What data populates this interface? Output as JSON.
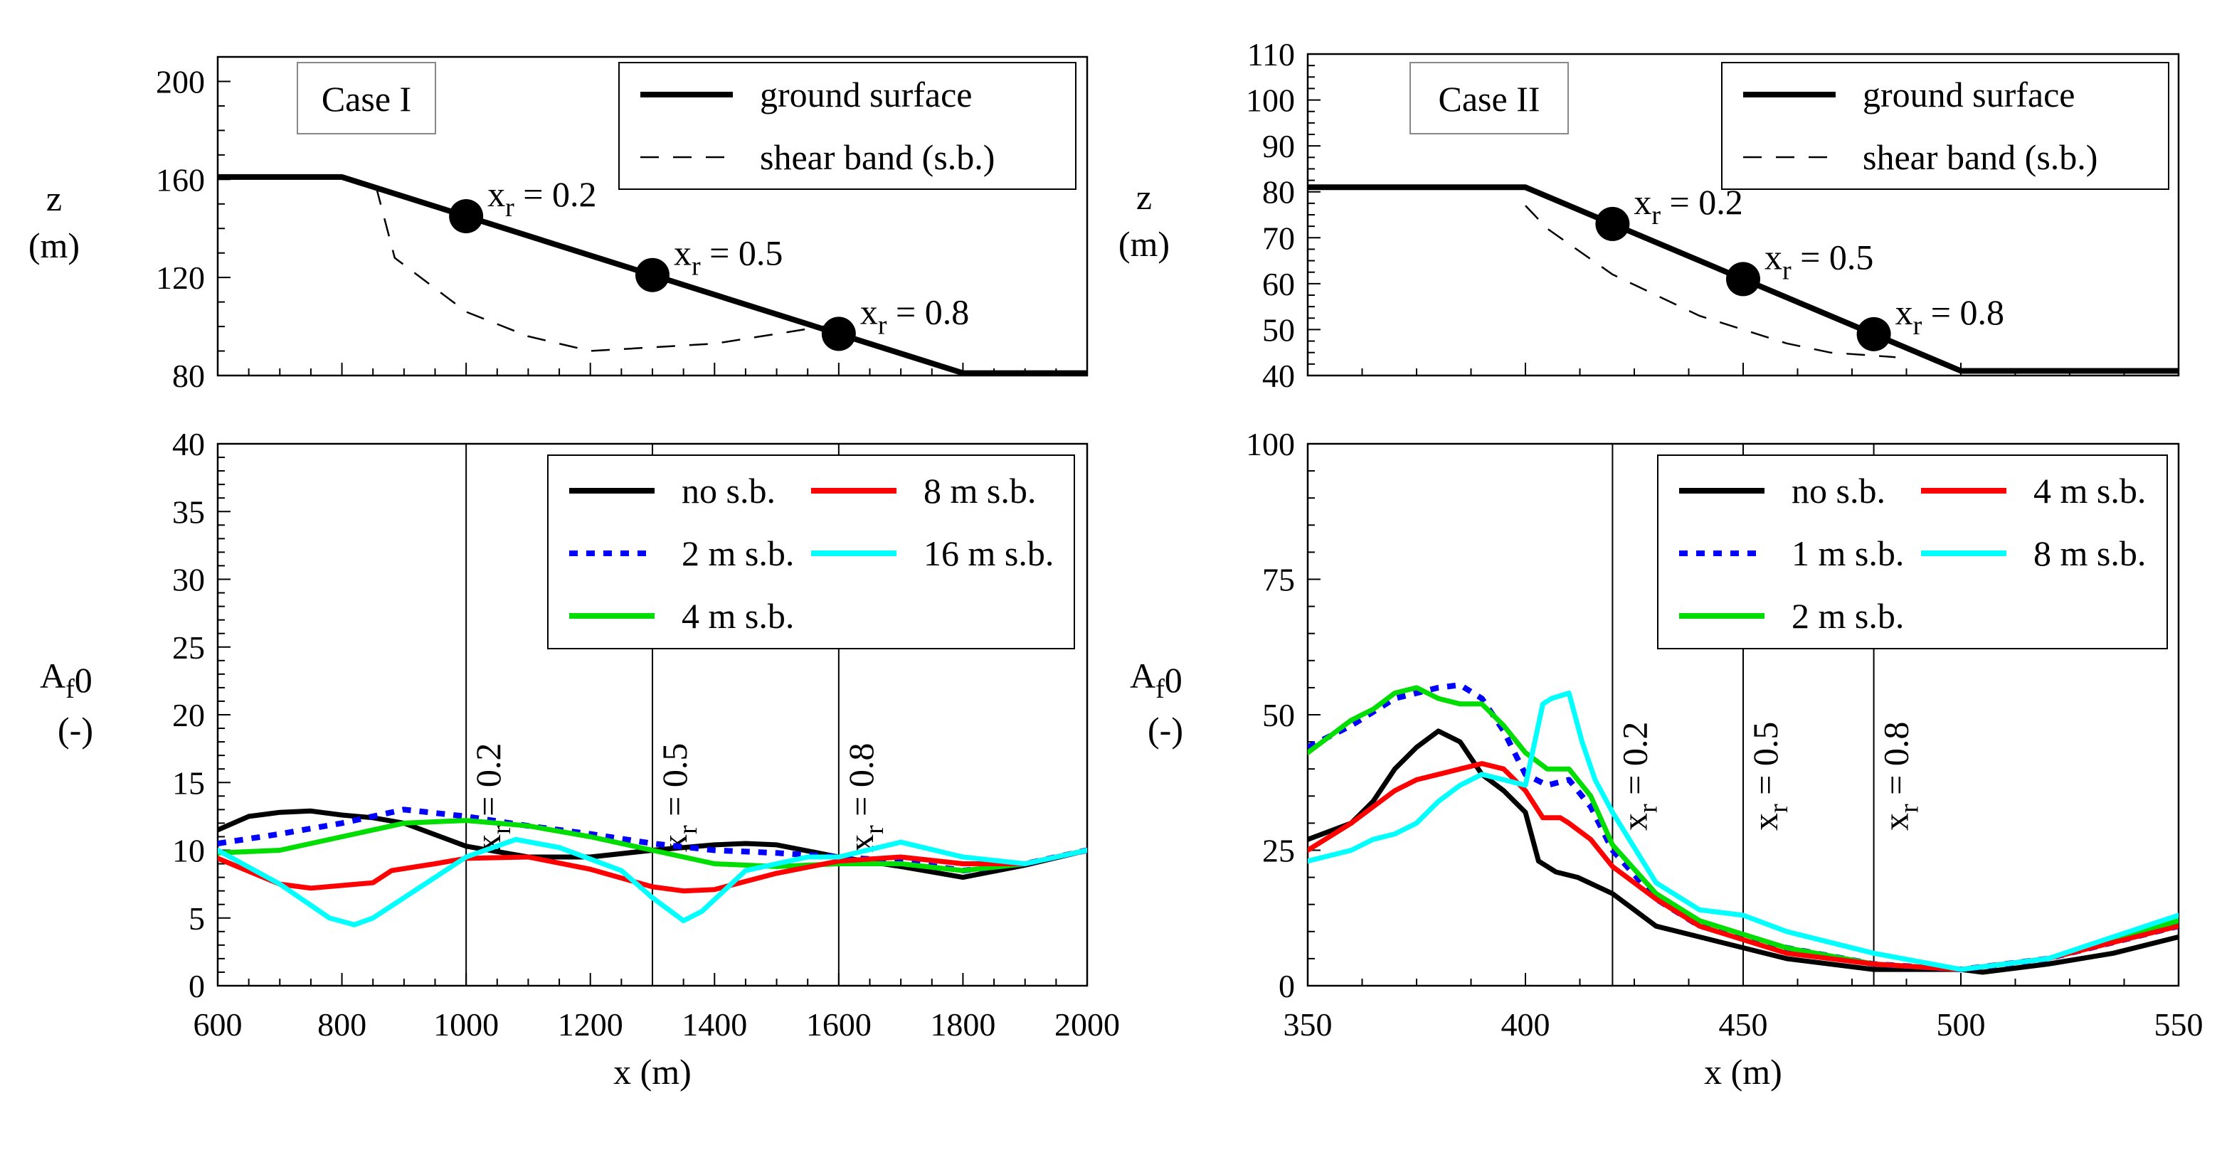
{
  "colors": {
    "black": "#000000",
    "red": "#ff0000",
    "blue": "#0000ff",
    "cyan": "#00ffff",
    "green": "#00dd00"
  },
  "chart_data": [
    {
      "id": "case1-profile",
      "type": "line",
      "title": "Case I",
      "xlabel": "",
      "ylabel": "z",
      "ylabel_unit": "(m)",
      "xlim": [
        600,
        2000
      ],
      "ylim": [
        80,
        210
      ],
      "xticks": [
        600,
        800,
        1000,
        1200,
        1400,
        1600,
        1800,
        2000
      ],
      "yticks": [
        80,
        120,
        160,
        200
      ],
      "legend": [
        {
          "label": "ground surface",
          "style": "solid-thick"
        },
        {
          "label": "shear band (s.b.)",
          "style": "dashed"
        }
      ],
      "series": [
        {
          "name": "ground surface",
          "style": "solid-thick",
          "color": "#000000",
          "x": [
            600,
            800,
            1800,
            2000
          ],
          "y": [
            161,
            161,
            81,
            81
          ]
        },
        {
          "name": "shear band (s.b.)",
          "style": "dashed",
          "color": "#000000",
          "x": [
            855,
            885,
            1000,
            1100,
            1200,
            1400,
            1600
          ],
          "y": [
            157,
            128,
            106,
            96,
            90,
            93,
            101
          ]
        }
      ],
      "markers": [
        {
          "label": "x",
          "sub": "r",
          "value": " = 0.2",
          "x": 1000,
          "y": 145
        },
        {
          "label": "x",
          "sub": "r",
          "value": " = 0.5",
          "x": 1300,
          "y": 121
        },
        {
          "label": "x",
          "sub": "r",
          "value": " = 0.8",
          "x": 1600,
          "y": 97
        }
      ]
    },
    {
      "id": "case1-af0",
      "type": "line",
      "xlabel": "x (m)",
      "ylabel": "A",
      "ylabel_sub": "f",
      "ylabel_subsub": "0",
      "ylabel_unit": "(-)",
      "xlim": [
        600,
        2000
      ],
      "ylim": [
        0,
        40
      ],
      "xticks": [
        600,
        800,
        1000,
        1200,
        1400,
        1600,
        1800,
        2000
      ],
      "yticks": [
        0,
        5,
        10,
        15,
        20,
        25,
        30,
        35,
        40
      ],
      "vlines": [
        {
          "x": 1000,
          "label": "x",
          "sub": "r",
          "value": " = 0.2"
        },
        {
          "x": 1300,
          "label": "x",
          "sub": "r",
          "value": " = 0.5"
        },
        {
          "x": 1600,
          "label": "x",
          "sub": "r",
          "value": " = 0.8"
        }
      ],
      "legend": [
        {
          "label": "no s.b.",
          "series": 0
        },
        {
          "label": "8 m s.b.",
          "series": 3
        },
        {
          "label": "2 m s.b.",
          "series": 1
        },
        {
          "label": "16 m s.b.",
          "series": 4
        },
        {
          "label": "4 m s.b.",
          "series": 2
        }
      ],
      "series": [
        {
          "name": "no s.b.",
          "color": "#000000",
          "style": "solid",
          "x": [
            600,
            650,
            700,
            750,
            800,
            850,
            900,
            1000,
            1100,
            1200,
            1300,
            1400,
            1450,
            1500,
            1600,
            1700,
            1800,
            1900,
            2000
          ],
          "y": [
            11.5,
            12.5,
            12.8,
            12.9,
            12.6,
            12.4,
            12.0,
            10.3,
            9.5,
            9.5,
            10.0,
            10.4,
            10.5,
            10.4,
            9.5,
            8.8,
            8.0,
            8.9,
            10.0
          ]
        },
        {
          "name": "2 m s.b.",
          "color": "#0000ff",
          "style": "dotted",
          "x": [
            600,
            700,
            800,
            900,
            1000,
            1100,
            1200,
            1300,
            1400,
            1500,
            1600,
            1700,
            1800,
            1900,
            2000
          ],
          "y": [
            10.5,
            11.2,
            12.0,
            13.0,
            12.5,
            11.8,
            11.2,
            10.5,
            10.0,
            9.8,
            9.5,
            9.2,
            8.5,
            9.0,
            10.0
          ]
        },
        {
          "name": "4 m s.b.",
          "color": "#00dd00",
          "style": "solid",
          "x": [
            600,
            700,
            800,
            900,
            1000,
            1100,
            1200,
            1300,
            1400,
            1500,
            1600,
            1700,
            1800,
            1900,
            2000
          ],
          "y": [
            9.8,
            10.0,
            11.0,
            12.0,
            12.2,
            11.8,
            11.0,
            10.0,
            9.0,
            8.8,
            9.0,
            9.0,
            8.5,
            9.0,
            10.0
          ]
        },
        {
          "name": "8 m s.b.",
          "color": "#ff0000",
          "style": "solid",
          "x": [
            600,
            700,
            750,
            800,
            850,
            880,
            950,
            1000,
            1100,
            1200,
            1300,
            1350,
            1400,
            1500,
            1600,
            1700,
            1800,
            1900,
            2000
          ],
          "y": [
            9.4,
            7.5,
            7.2,
            7.4,
            7.6,
            8.5,
            9.0,
            9.4,
            9.5,
            8.6,
            7.3,
            7.0,
            7.1,
            8.3,
            9.2,
            9.5,
            9.0,
            9.0,
            10.0
          ]
        },
        {
          "name": "16 m s.b.",
          "color": "#00ffff",
          "style": "solid",
          "x": [
            600,
            700,
            780,
            820,
            850,
            900,
            1000,
            1080,
            1150,
            1250,
            1300,
            1350,
            1380,
            1450,
            1550,
            1600,
            1700,
            1800,
            1900,
            2000
          ],
          "y": [
            10.0,
            7.5,
            5.0,
            4.5,
            5.0,
            6.5,
            9.5,
            10.8,
            10.2,
            8.5,
            6.5,
            4.8,
            5.5,
            8.5,
            9.5,
            9.5,
            10.6,
            9.5,
            9.0,
            10.0
          ]
        }
      ]
    },
    {
      "id": "case2-profile",
      "type": "line",
      "title": "Case II",
      "xlabel": "",
      "ylabel": "z",
      "ylabel_unit": "(m)",
      "xlim": [
        350,
        550
      ],
      "ylim": [
        40,
        110
      ],
      "xticks": [
        350,
        400,
        450,
        500,
        550
      ],
      "yticks": [
        40,
        50,
        60,
        70,
        80,
        90,
        100,
        110
      ],
      "legend": [
        {
          "label": "ground surface",
          "style": "solid-thick"
        },
        {
          "label": "shear band (s.b.)",
          "style": "dashed"
        }
      ],
      "series": [
        {
          "name": "ground surface",
          "style": "solid-thick",
          "color": "#000000",
          "x": [
            350,
            400,
            500,
            550
          ],
          "y": [
            81,
            81,
            41,
            41
          ]
        },
        {
          "name": "shear band (s.b.)",
          "style": "dashed",
          "color": "#000000",
          "x": [
            400,
            405,
            420,
            440,
            460,
            470,
            485
          ],
          "y": [
            77,
            72,
            62,
            53,
            47,
            45,
            44
          ]
        }
      ],
      "markers": [
        {
          "label": "x",
          "sub": "r",
          "value": " = 0.2",
          "x": 420,
          "y": 73
        },
        {
          "label": "x",
          "sub": "r",
          "value": " = 0.5",
          "x": 450,
          "y": 61
        },
        {
          "label": "x",
          "sub": "r",
          "value": " = 0.8",
          "x": 480,
          "y": 49
        }
      ]
    },
    {
      "id": "case2-af0",
      "type": "line",
      "xlabel": "x (m)",
      "ylabel": "A",
      "ylabel_sub": "f",
      "ylabel_subsub": "0",
      "ylabel_unit": "(-)",
      "xlim": [
        350,
        550
      ],
      "ylim": [
        0,
        100
      ],
      "xticks": [
        350,
        400,
        450,
        500,
        550
      ],
      "yticks": [
        0,
        25,
        50,
        75,
        100
      ],
      "vlines": [
        {
          "x": 420,
          "label": "x",
          "sub": "r",
          "value": " = 0.2"
        },
        {
          "x": 450,
          "label": "x",
          "sub": "r",
          "value": " = 0.5"
        },
        {
          "x": 480,
          "label": "x",
          "sub": "r",
          "value": " = 0.8"
        }
      ],
      "legend": [
        {
          "label": "no s.b.",
          "series": 0
        },
        {
          "label": "4 m s.b.",
          "series": 3
        },
        {
          "label": "1 m s.b.",
          "series": 1
        },
        {
          "label": "8 m s.b.",
          "series": 4
        },
        {
          "label": "2 m s.b.",
          "series": 2
        }
      ],
      "series": [
        {
          "name": "no s.b.",
          "color": "#000000",
          "style": "solid",
          "x": [
            350,
            360,
            365,
            370,
            375,
            380,
            385,
            390,
            395,
            400,
            403,
            407,
            412,
            420,
            425,
            430,
            440,
            460,
            480,
            500,
            505,
            520,
            535,
            550
          ],
          "y": [
            27,
            30,
            34,
            40,
            44,
            47,
            45,
            39,
            36,
            32,
            23,
            21,
            20,
            17,
            14,
            11,
            9,
            5,
            3,
            3,
            2.5,
            4,
            6,
            9
          ]
        },
        {
          "name": "1 m s.b.",
          "color": "#0000ff",
          "style": "dotted",
          "x": [
            350,
            360,
            370,
            380,
            385,
            390,
            395,
            400,
            405,
            410,
            415,
            420,
            430,
            440,
            460,
            480,
            500,
            520,
            550
          ],
          "y": [
            44,
            48,
            53,
            55,
            55.5,
            53,
            47,
            39,
            37,
            38,
            33,
            25,
            16,
            11,
            7,
            4,
            3,
            5,
            11
          ]
        },
        {
          "name": "2 m s.b.",
          "color": "#00dd00",
          "style": "solid",
          "x": [
            350,
            355,
            360,
            365,
            370,
            375,
            380,
            385,
            390,
            395,
            400,
            405,
            410,
            415,
            420,
            430,
            440,
            460,
            480,
            500,
            520,
            550
          ],
          "y": [
            43,
            46,
            49,
            51,
            54,
            55,
            53,
            52,
            52,
            48,
            43,
            40,
            40,
            35,
            26,
            17,
            12,
            7,
            4,
            3,
            5,
            12
          ]
        },
        {
          "name": "4 m s.b.",
          "color": "#ff0000",
          "style": "solid",
          "x": [
            350,
            360,
            365,
            370,
            375,
            380,
            385,
            390,
            395,
            400,
            404,
            408,
            410,
            415,
            420,
            425,
            430,
            440,
            460,
            480,
            500,
            520,
            550
          ],
          "y": [
            25,
            30,
            33,
            36,
            38,
            39,
            40,
            41,
            40,
            36,
            31,
            31,
            30,
            27,
            22,
            19,
            16,
            11,
            6,
            4,
            3,
            5,
            11
          ]
        },
        {
          "name": "8 m s.b.",
          "color": "#00ffff",
          "style": "solid",
          "x": [
            350,
            360,
            365,
            370,
            375,
            380,
            385,
            390,
            395,
            400,
            404,
            406,
            410,
            413,
            416,
            420,
            430,
            440,
            450,
            460,
            480,
            500,
            520,
            550
          ],
          "y": [
            23,
            25,
            27,
            28,
            30,
            34,
            37,
            39,
            38,
            37,
            52,
            53,
            54,
            45,
            38,
            32,
            19,
            14,
            13,
            10,
            6,
            3,
            5,
            13
          ]
        }
      ]
    }
  ]
}
